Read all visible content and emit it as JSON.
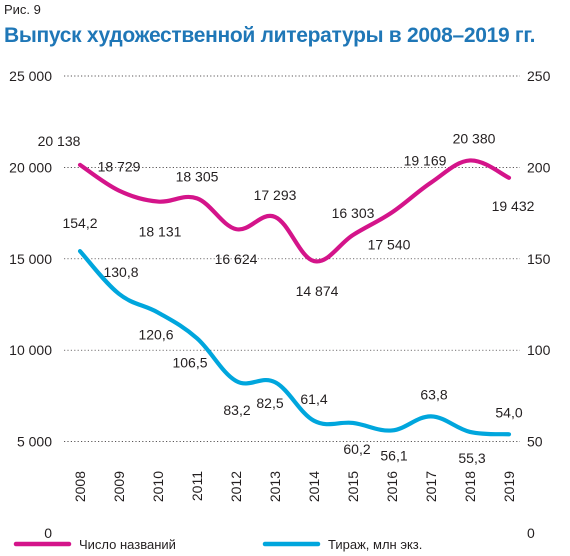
{
  "figure_label": "Рис. 9",
  "chart_data": {
    "type": "line",
    "title": "Выпуск художественной литературы в 2008–2019 гг.",
    "x": [
      "2008",
      "2009",
      "2010",
      "2011",
      "2012",
      "2013",
      "2014",
      "2015",
      "2016",
      "2017",
      "2018",
      "2019"
    ],
    "left_axis": {
      "ticks": [
        "0",
        "5 000",
        "10 000",
        "15 000",
        "20 000",
        "25 000"
      ],
      "ylim": [
        0,
        25000
      ]
    },
    "right_axis": {
      "ticks": [
        "0",
        "50",
        "100",
        "150",
        "200",
        "250"
      ],
      "ylim": [
        0,
        250
      ]
    },
    "grid": "horizontal",
    "legend_position": "bottom",
    "series": [
      {
        "name": "Число названий",
        "axis": "left",
        "color": "#d4148a",
        "values": [
          20138,
          18729,
          18131,
          18305,
          16624,
          17293,
          14874,
          16303,
          17540,
          19169,
          20380,
          19432
        ],
        "labels": [
          "20 138",
          "18 729",
          "18 131",
          "18 305",
          "16 624",
          "17 293",
          "14 874",
          "16 303",
          "17 540",
          "19 169",
          "20 380",
          "19 432"
        ]
      },
      {
        "name": "Тираж, млн экз.",
        "axis": "right",
        "color": "#00a6dd",
        "values": [
          154.2,
          130.8,
          120.6,
          106.5,
          83.2,
          82.5,
          61.4,
          60.2,
          56.1,
          63.8,
          55.3,
          54.0
        ],
        "labels": [
          "154,2",
          "130,8",
          "120,6",
          "106,5",
          "83,2",
          "82,5",
          "61,4",
          "60,2",
          "56,1",
          "63,8",
          "55,3",
          "54,0"
        ]
      }
    ]
  }
}
